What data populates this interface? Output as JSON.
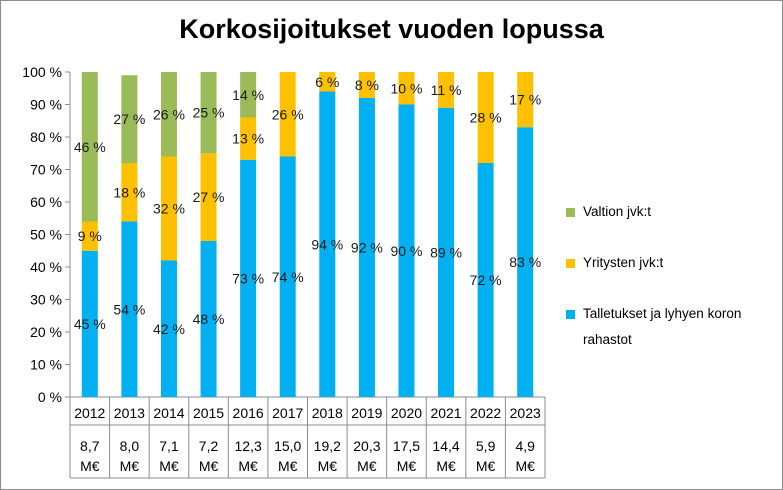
{
  "chart_data": {
    "type": "stacked-bar-100",
    "title": "Korkosijoitukset vuoden lopussa",
    "xlabel": "",
    "ylabel": "",
    "ylim": [
      0,
      100
    ],
    "y_ticks": [
      "0 %",
      "10 %",
      "20 %",
      "30 %",
      "40 %",
      "50 %",
      "60 %",
      "70 %",
      "80 %",
      "90 %",
      "100 %"
    ],
    "grid": false,
    "legend_position": "right",
    "categories": [
      "2012",
      "2013",
      "2014",
      "2015",
      "2016",
      "2017",
      "2018",
      "2019",
      "2020",
      "2021",
      "2022",
      "2023"
    ],
    "totals": [
      [
        "8,7",
        "M€"
      ],
      [
        "8,0",
        "M€"
      ],
      [
        "7,1",
        "M€"
      ],
      [
        "7,2",
        "M€"
      ],
      [
        "12,3",
        "M€"
      ],
      [
        "15,0",
        "M€"
      ],
      [
        "19,2",
        "M€"
      ],
      [
        "20,3",
        "M€"
      ],
      [
        "17,5",
        "M€"
      ],
      [
        "14,4",
        "M€"
      ],
      [
        "5,9",
        "M€"
      ],
      [
        "4,9",
        "M€"
      ]
    ],
    "series": [
      {
        "name": "Talletukset ja lyhyen koron rahastot",
        "legend_lines": [
          "Talletukset ja lyhyen koron",
          "rahastot"
        ],
        "color": "#00b0f0",
        "values": [
          45,
          54,
          42,
          48,
          73,
          74,
          94,
          92,
          90,
          89,
          72,
          83
        ],
        "labels": [
          "45 %",
          "54 %",
          "42 %",
          "48 %",
          "73 %",
          "74 %",
          "94 %",
          "92 %",
          "90 %",
          "89 %",
          "72 %",
          "83 %"
        ]
      },
      {
        "name": "Yritysten jvk:t",
        "legend_lines": [
          "Yritysten jvk:t"
        ],
        "color": "#ffc000",
        "values": [
          9,
          18,
          32,
          27,
          13,
          26,
          6,
          8,
          10,
          11,
          28,
          17
        ],
        "labels": [
          "9 %",
          "18 %",
          "32 %",
          "27 %",
          "13 %",
          "26 %",
          "6 %",
          "8 %",
          "10 %",
          "11 %",
          "28 %",
          "17 %"
        ]
      },
      {
        "name": "Valtion jvk:t",
        "legend_lines": [
          "Valtion jvk:t"
        ],
        "color": "#9bbb59",
        "values": [
          46,
          27,
          26,
          25,
          14,
          0,
          0,
          0,
          0,
          0,
          0,
          0
        ],
        "labels": [
          "46 %",
          "27 %",
          "26 %",
          "25 %",
          "14 %",
          "",
          "",
          "",
          "",
          "",
          "",
          ""
        ]
      }
    ]
  }
}
